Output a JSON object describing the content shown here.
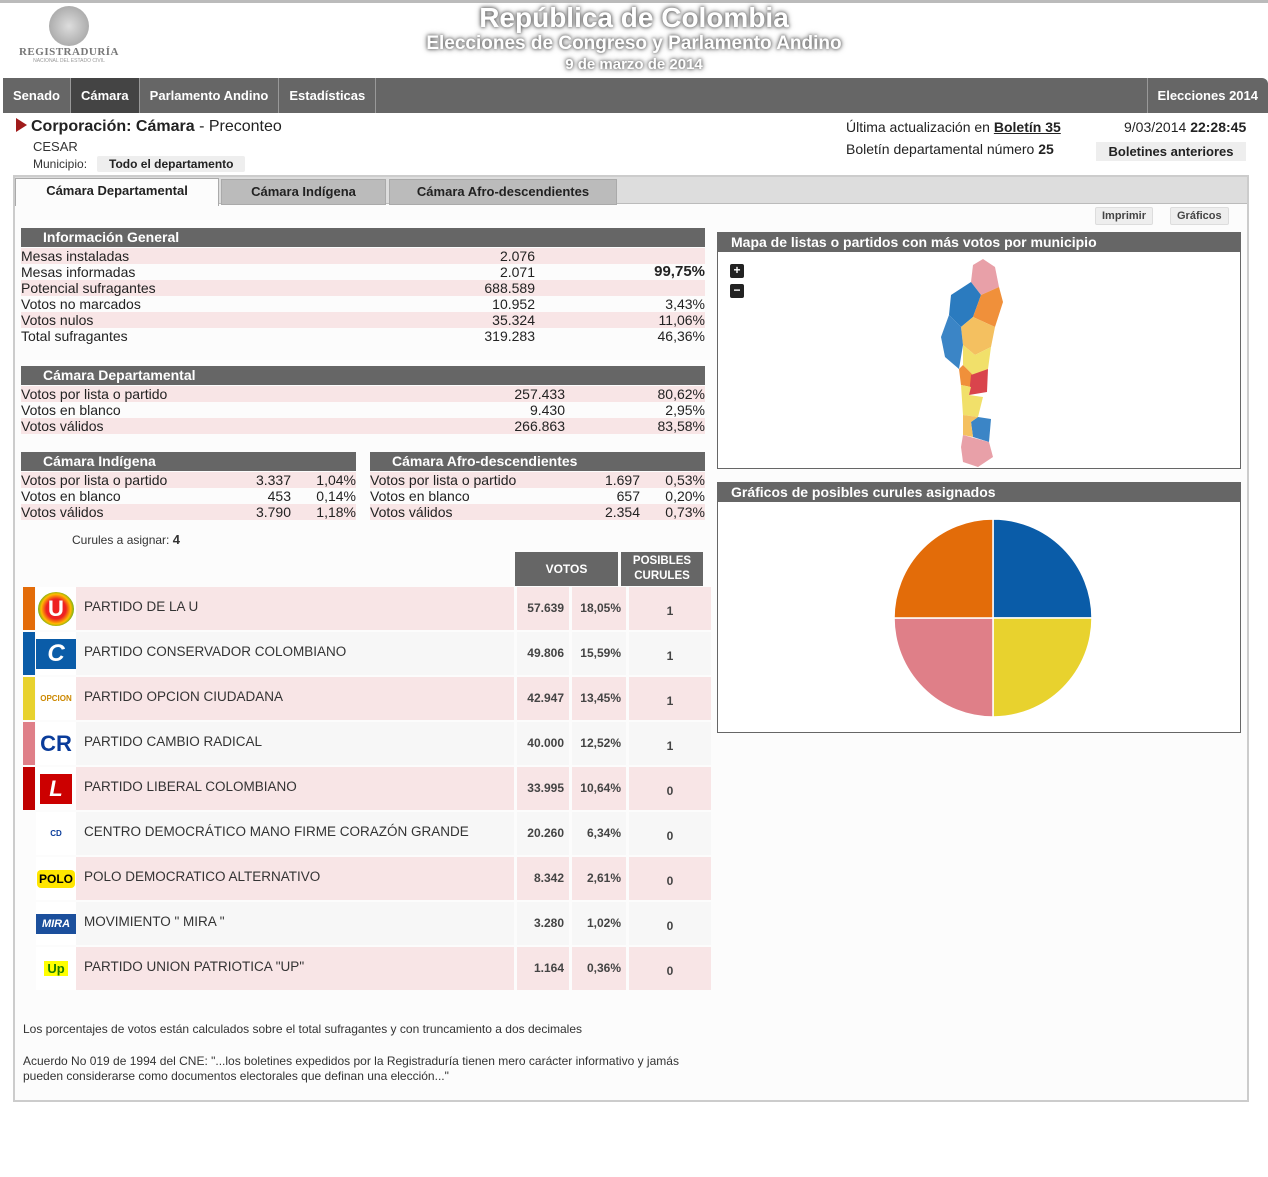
{
  "header": {
    "logo_text": "REGISTRADURÍA",
    "logo_sub": "NACIONAL DEL ESTADO CIVIL",
    "title": "República de Colombia",
    "subtitle": "Elecciones de Congreso y Parlamento Andino",
    "date": "9 de marzo de 2014"
  },
  "nav": {
    "items": [
      "Senado",
      "Cámara",
      "Parlamento Andino",
      "Estadísticas"
    ],
    "active": "Cámara",
    "right": "Elecciones 2014"
  },
  "info": {
    "corp_label": "Corporación:",
    "corp_value": "Cámara",
    "corp_suffix": "- Preconteo",
    "department": "CESAR",
    "municipio_label": "Municipio:",
    "municipio_value": "Todo el departamento",
    "update_label": "Última actualización en",
    "update_bulletin": "Boletín 35",
    "bulletin_label": "Boletín departamental número",
    "bulletin_number": "25",
    "date": "9/03/2014",
    "time": "22:28:45",
    "previous_button": "Boletines anteriores"
  },
  "tabs": [
    "Cámara Departamental",
    "Cámara Indígena",
    "Cámara Afro-descendientes"
  ],
  "buttons": {
    "print": "Imprimir",
    "charts": "Gráficos"
  },
  "general": {
    "title": "Información General",
    "rows": [
      {
        "label": "Mesas instaladas",
        "value": "2.076",
        "pct": ""
      },
      {
        "label": "Mesas informadas",
        "value": "2.071",
        "pct": "99,75%"
      },
      {
        "label": "Potencial sufragantes",
        "value": "688.589",
        "pct": ""
      },
      {
        "label": "Votos no marcados",
        "value": "10.952",
        "pct": "3,43%"
      },
      {
        "label": "Votos nulos",
        "value": "35.324",
        "pct": "11,06%"
      },
      {
        "label": "Total sufragantes",
        "value": "319.283",
        "pct": "46,36%"
      }
    ]
  },
  "departamental": {
    "title": "Cámara Departamental",
    "rows": [
      {
        "label": "Votos por lista o partido",
        "value": "257.433",
        "pct": "80,62%"
      },
      {
        "label": "Votos en blanco",
        "value": "9.430",
        "pct": "2,95%"
      },
      {
        "label": "Votos válidos",
        "value": "266.863",
        "pct": "83,58%"
      }
    ]
  },
  "indigena": {
    "title": "Cámara Indígena",
    "rows": [
      {
        "label": "Votos por lista o partido",
        "value": "3.337",
        "pct": "1,04%"
      },
      {
        "label": "Votos en blanco",
        "value": "453",
        "pct": "0,14%"
      },
      {
        "label": "Votos válidos",
        "value": "3.790",
        "pct": "1,18%"
      }
    ]
  },
  "afro": {
    "title": "Cámara Afro-descendientes",
    "rows": [
      {
        "label": "Votos por lista o partido",
        "value": "1.697",
        "pct": "0,53%"
      },
      {
        "label": "Votos en blanco",
        "value": "657",
        "pct": "0,20%"
      },
      {
        "label": "Votos válidos",
        "value": "2.354",
        "pct": "0,73%"
      }
    ]
  },
  "curules": {
    "label": "Curules a asignar:",
    "value": "4"
  },
  "parties_header": {
    "votes": "VOTOS",
    "seats1": "POSIBLES",
    "seats2": "CURULES"
  },
  "parties": [
    {
      "name": "PARTIDO DE LA U",
      "votes": "57.639",
      "pct": "18,05%",
      "seats": "1",
      "color": "#e36c09",
      "logo": "U"
    },
    {
      "name": "PARTIDO CONSERVADOR COLOMBIANO",
      "votes": "49.806",
      "pct": "15,59%",
      "seats": "1",
      "color": "#0a5ca8",
      "logo": "C"
    },
    {
      "name": "PARTIDO OPCION CIUDADANA",
      "votes": "42.947",
      "pct": "13,45%",
      "seats": "1",
      "color": "#e8d22e",
      "logo": "OPCION"
    },
    {
      "name": "PARTIDO CAMBIO RADICAL",
      "votes": "40.000",
      "pct": "12,52%",
      "seats": "1",
      "color": "#df7f88",
      "logo": "CR"
    },
    {
      "name": "PARTIDO LIBERAL COLOMBIANO",
      "votes": "33.995",
      "pct": "10,64%",
      "seats": "0",
      "color": "#c00000",
      "logo": "L"
    },
    {
      "name": "CENTRO DEMOCRÁTICO MANO FIRME CORAZÓN GRANDE",
      "votes": "20.260",
      "pct": "6,34%",
      "seats": "0",
      "color": "",
      "logo": "CD"
    },
    {
      "name": "POLO DEMOCRATICO ALTERNATIVO",
      "votes": "8.342",
      "pct": "2,61%",
      "seats": "0",
      "color": "",
      "logo": "POLO"
    },
    {
      "name": "MOVIMIENTO \" MIRA \"",
      "votes": "3.280",
      "pct": "1,02%",
      "seats": "0",
      "color": "",
      "logo": "MIRA"
    },
    {
      "name": "PARTIDO UNION PATRIOTICA \"UP\"",
      "votes": "1.164",
      "pct": "0,36%",
      "seats": "0",
      "color": "",
      "logo": "Up"
    }
  ],
  "notes": {
    "n1": "Los porcentajes de votos están calculados sobre el total sufragantes y con truncamiento a dos decimales",
    "n2": "Acuerdo No 019 de 1994 del CNE: \"...los boletines expedidos por la Registraduría tienen mero carácter informativo y jamás pueden considerarse como documentos electorales que definan una elección...\""
  },
  "map": {
    "title": "Mapa de listas o partidos con más votos por municipio",
    "zoom_in": "+",
    "zoom_out": "−"
  },
  "chart_data": {
    "type": "pie",
    "title": "Gráficos de posibles curules asignados",
    "labels": [
      "PARTIDO CONSERVADOR COLOMBIANO",
      "PARTIDO OPCION CIUDADANA",
      "PARTIDO CAMBIO RADICAL",
      "PARTIDO DE LA U"
    ],
    "values": [
      1,
      1,
      1,
      1
    ],
    "colors": [
      "#0a5ca8",
      "#e8d22e",
      "#df7f88",
      "#e36c09"
    ]
  }
}
